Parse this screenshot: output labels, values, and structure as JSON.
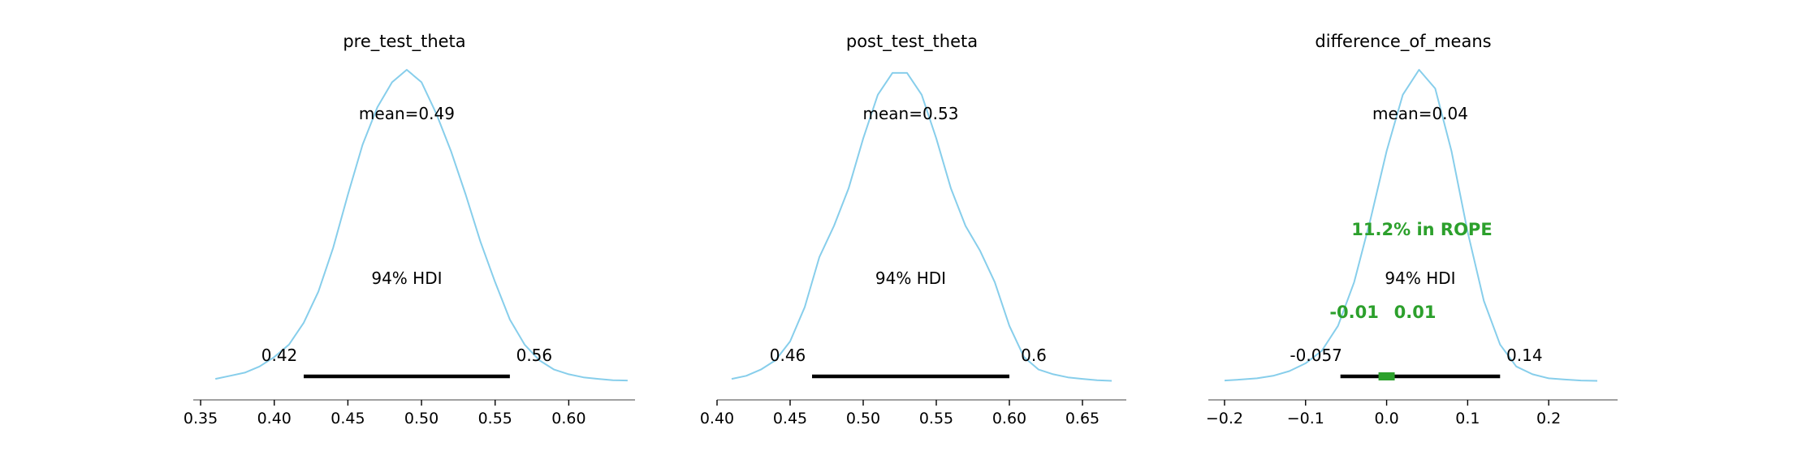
{
  "chart_data": [
    {
      "type": "area",
      "title": "pre_test_theta",
      "mean_label": "mean=0.49",
      "hdi_label": "94% HDI",
      "hdi": [
        0.42,
        0.56
      ],
      "hdi_low_label": "0.42",
      "hdi_high_label": "0.56",
      "xlim": [
        0.345,
        0.645
      ],
      "xticks": [
        0.35,
        0.4,
        0.45,
        0.5,
        0.55,
        0.6
      ],
      "xtick_labels": [
        "0.35",
        "0.40",
        "0.45",
        "0.50",
        "0.55",
        "0.60"
      ],
      "density": {
        "x": [
          0.36,
          0.37,
          0.38,
          0.39,
          0.4,
          0.41,
          0.42,
          0.43,
          0.44,
          0.45,
          0.46,
          0.47,
          0.48,
          0.49,
          0.5,
          0.51,
          0.52,
          0.53,
          0.54,
          0.55,
          0.56,
          0.57,
          0.58,
          0.59,
          0.6,
          0.61,
          0.62,
          0.63,
          0.64
        ],
        "y": [
          0.01,
          0.02,
          0.03,
          0.05,
          0.08,
          0.12,
          0.19,
          0.29,
          0.43,
          0.6,
          0.76,
          0.88,
          0.96,
          1.0,
          0.96,
          0.86,
          0.74,
          0.6,
          0.45,
          0.32,
          0.2,
          0.12,
          0.07,
          0.04,
          0.025,
          0.015,
          0.01,
          0.006,
          0.005
        ]
      }
    },
    {
      "type": "area",
      "title": "post_test_theta",
      "mean_label": "mean=0.53",
      "hdi_label": "94% HDI",
      "hdi": [
        0.465,
        0.6
      ],
      "hdi_low_label": "0.46",
      "hdi_high_label": "0.6",
      "xlim": [
        0.4,
        0.68
      ],
      "xticks": [
        0.4,
        0.45,
        0.5,
        0.55,
        0.6,
        0.65
      ],
      "xtick_labels": [
        "0.40",
        "0.45",
        "0.50",
        "0.55",
        "0.60",
        "0.65"
      ],
      "density": {
        "x": [
          0.41,
          0.42,
          0.43,
          0.44,
          0.45,
          0.46,
          0.47,
          0.48,
          0.49,
          0.5,
          0.51,
          0.52,
          0.53,
          0.54,
          0.55,
          0.56,
          0.57,
          0.58,
          0.59,
          0.6,
          0.61,
          0.62,
          0.63,
          0.64,
          0.65,
          0.66,
          0.67
        ],
        "y": [
          0.01,
          0.02,
          0.04,
          0.07,
          0.13,
          0.24,
          0.4,
          0.5,
          0.62,
          0.78,
          0.92,
          0.99,
          0.99,
          0.92,
          0.78,
          0.62,
          0.5,
          0.42,
          0.32,
          0.18,
          0.08,
          0.04,
          0.025,
          0.015,
          0.01,
          0.006,
          0.004
        ]
      }
    },
    {
      "type": "area",
      "title": "difference_of_means",
      "mean_label": "mean=0.04",
      "hdi_label": "94% HDI",
      "hdi": [
        -0.057,
        0.14
      ],
      "hdi_low_label": "-0.057",
      "hdi_high_label": "0.14",
      "rope": [
        -0.01,
        0.01
      ],
      "rope_label": "11.2% in ROPE",
      "rope_low_label": "-0.01",
      "rope_high_label": "0.01",
      "rope_color": "#2ca02c",
      "xlim": [
        -0.22,
        0.285
      ],
      "xticks": [
        -0.2,
        -0.1,
        0.0,
        0.1,
        0.2
      ],
      "xtick_labels": [
        "−0.2",
        "−0.1",
        "0.0",
        "0.1",
        "0.2"
      ],
      "density": {
        "x": [
          -0.2,
          -0.18,
          -0.16,
          -0.14,
          -0.12,
          -0.1,
          -0.08,
          -0.06,
          -0.04,
          -0.02,
          0.0,
          0.02,
          0.04,
          0.06,
          0.08,
          0.1,
          0.12,
          0.14,
          0.16,
          0.18,
          0.2,
          0.22,
          0.24,
          0.26
        ],
        "y": [
          0.005,
          0.008,
          0.012,
          0.02,
          0.035,
          0.06,
          0.1,
          0.18,
          0.32,
          0.52,
          0.74,
          0.92,
          1.0,
          0.94,
          0.74,
          0.48,
          0.26,
          0.12,
          0.05,
          0.025,
          0.012,
          0.008,
          0.005,
          0.004
        ]
      }
    }
  ],
  "colors": {
    "kde": "#87ceeb",
    "hdi_bar": "#000000",
    "rope": "#2ca02c",
    "axis": "#808080"
  }
}
